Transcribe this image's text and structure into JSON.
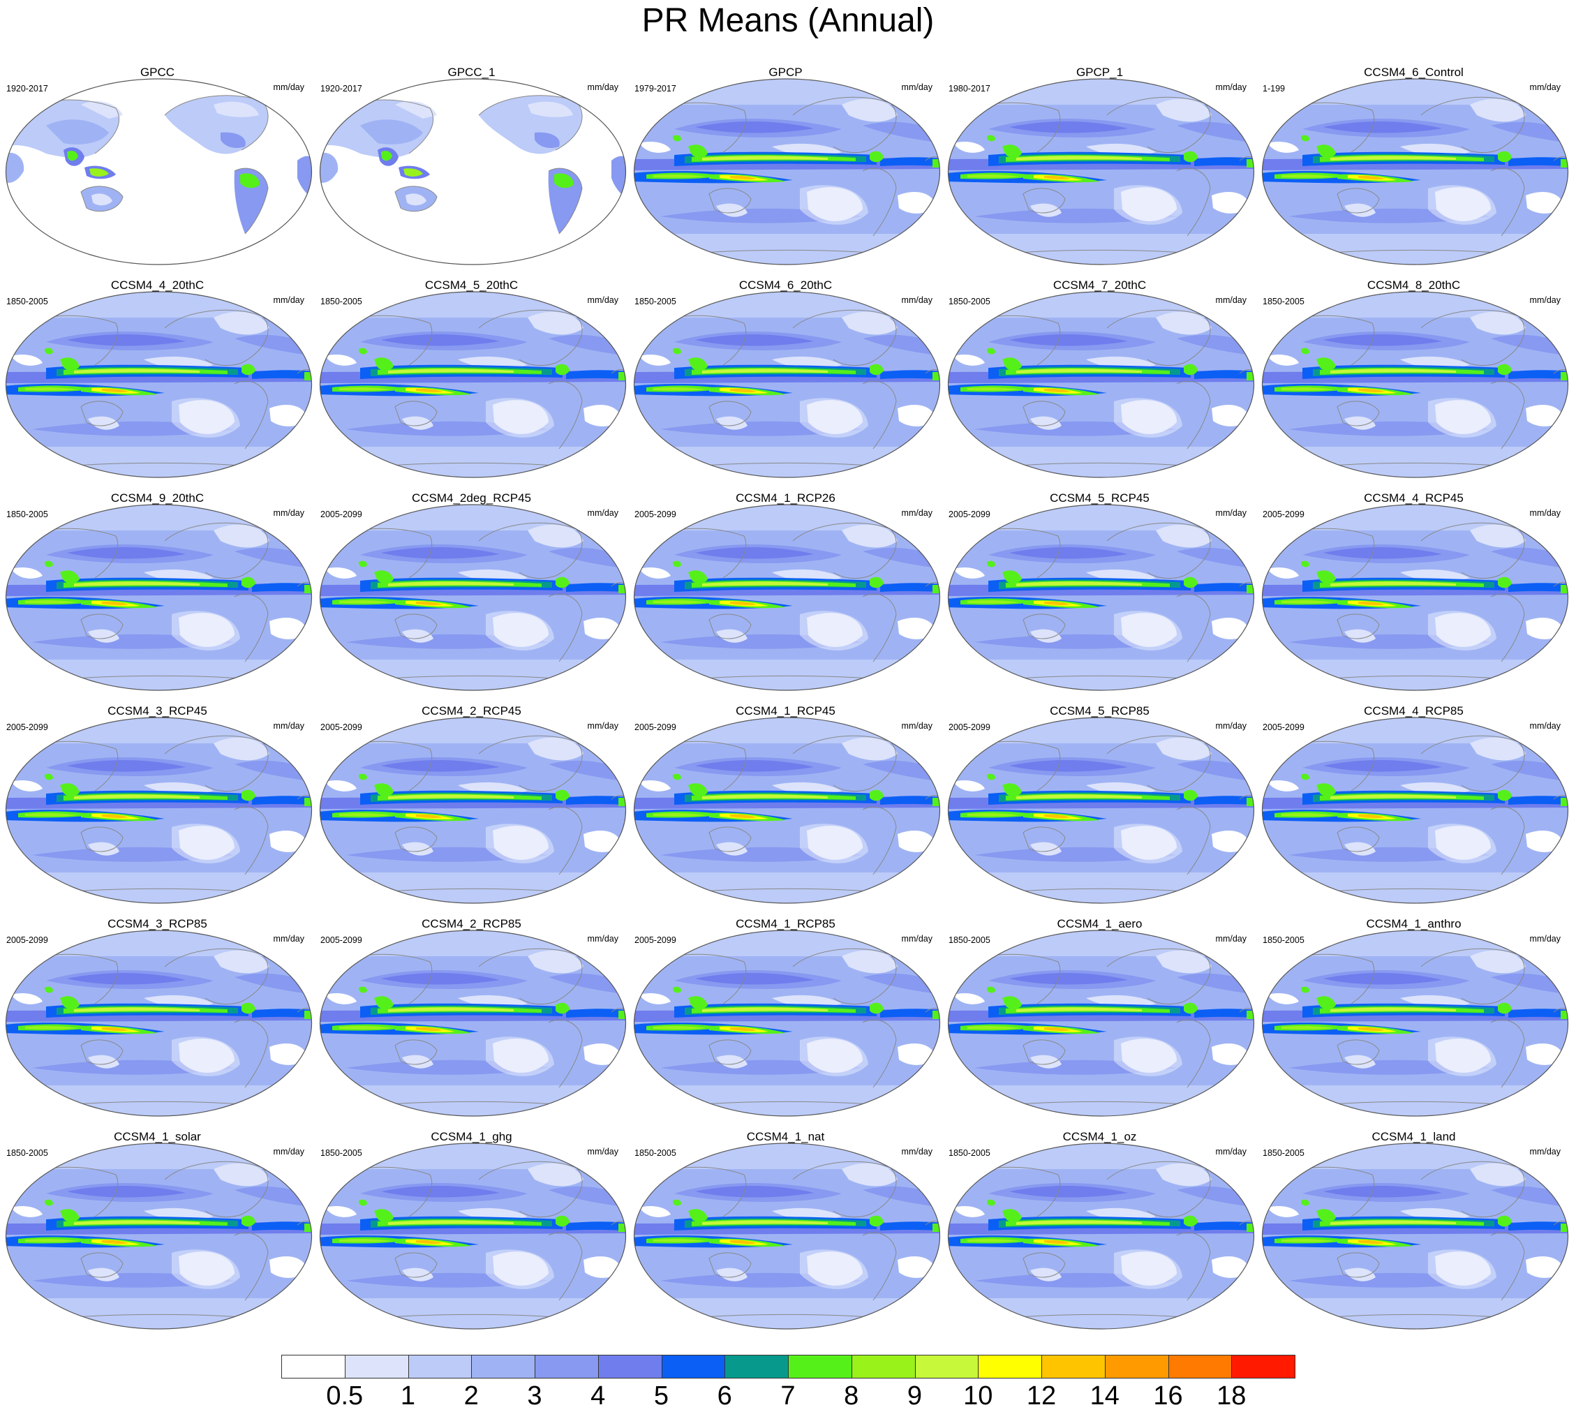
{
  "title": "PR Means (Annual)",
  "units": "mm/day",
  "panels": [
    {
      "name": "GPCC",
      "period": "1920-2017",
      "kind": "land"
    },
    {
      "name": "GPCC_1",
      "period": "1920-2017",
      "kind": "land"
    },
    {
      "name": "GPCP",
      "period": "1979-2017",
      "kind": "obs"
    },
    {
      "name": "GPCP_1",
      "period": "1980-2017",
      "kind": "obs"
    },
    {
      "name": "CCSM4_6_Control",
      "period": "1-199",
      "kind": "model"
    },
    {
      "name": "CCSM4_4_20thC",
      "period": "1850-2005",
      "kind": "model"
    },
    {
      "name": "CCSM4_5_20thC",
      "period": "1850-2005",
      "kind": "model"
    },
    {
      "name": "CCSM4_6_20thC",
      "period": "1850-2005",
      "kind": "model"
    },
    {
      "name": "CCSM4_7_20thC",
      "period": "1850-2005",
      "kind": "model"
    },
    {
      "name": "CCSM4_8_20thC",
      "period": "1850-2005",
      "kind": "model"
    },
    {
      "name": "CCSM4_9_20thC",
      "period": "1850-2005",
      "kind": "model"
    },
    {
      "name": "CCSM4_2deg_RCP45",
      "period": "2005-2099",
      "kind": "model"
    },
    {
      "name": "CCSM4_1_RCP26",
      "period": "2005-2099",
      "kind": "model"
    },
    {
      "name": "CCSM4_5_RCP45",
      "period": "2005-2099",
      "kind": "model"
    },
    {
      "name": "CCSM4_4_RCP45",
      "period": "2005-2099",
      "kind": "model"
    },
    {
      "name": "CCSM4_3_RCP45",
      "period": "2005-2099",
      "kind": "model"
    },
    {
      "name": "CCSM4_2_RCP45",
      "period": "2005-2099",
      "kind": "model"
    },
    {
      "name": "CCSM4_1_RCP45",
      "period": "2005-2099",
      "kind": "model"
    },
    {
      "name": "CCSM4_5_RCP85",
      "period": "2005-2099",
      "kind": "model"
    },
    {
      "name": "CCSM4_4_RCP85",
      "period": "2005-2099",
      "kind": "model"
    },
    {
      "name": "CCSM4_3_RCP85",
      "period": "2005-2099",
      "kind": "model"
    },
    {
      "name": "CCSM4_2_RCP85",
      "period": "2005-2099",
      "kind": "model"
    },
    {
      "name": "CCSM4_1_RCP85",
      "period": "2005-2099",
      "kind": "model"
    },
    {
      "name": "CCSM4_1_aero",
      "period": "1850-2005",
      "kind": "model"
    },
    {
      "name": "CCSM4_1_anthro",
      "period": "1850-2005",
      "kind": "model"
    },
    {
      "name": "CCSM4_1_solar",
      "period": "1850-2005",
      "kind": "model"
    },
    {
      "name": "CCSM4_1_ghg",
      "period": "1850-2005",
      "kind": "model"
    },
    {
      "name": "CCSM4_1_nat",
      "period": "1850-2005",
      "kind": "model"
    },
    {
      "name": "CCSM4_1_oz",
      "period": "1850-2005",
      "kind": "model"
    },
    {
      "name": "CCSM4_1_land",
      "period": "1850-2005",
      "kind": "model"
    }
  ],
  "colorbar": {
    "labels": [
      "0.5",
      "1",
      "2",
      "3",
      "4",
      "5",
      "6",
      "7",
      "8",
      "9",
      "10",
      "12",
      "14",
      "16",
      "18"
    ],
    "colors": [
      "#ffffff",
      "#dce3fb",
      "#bccbf8",
      "#9fb3f4",
      "#8799f0",
      "#6f7ded",
      "#0b5ff5",
      "#079a8c",
      "#55f01a",
      "#99f21a",
      "#c7f83a",
      "#ffff00",
      "#ffc400",
      "#ff9a00",
      "#ff7a00",
      "#ff1a00"
    ]
  }
}
